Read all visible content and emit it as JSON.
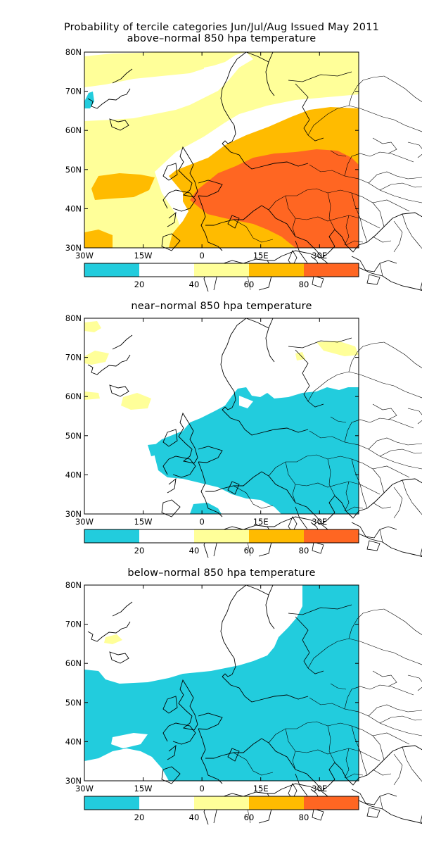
{
  "figure": {
    "title": "Probability of tercile categories Jun/Jul/Aug Issued May 2011",
    "panels": [
      {
        "id": "above",
        "subtitle": "above–normal 850 hpa temperature"
      },
      {
        "id": "near",
        "subtitle": "near–normal 850 hpa temperature"
      },
      {
        "id": "below",
        "subtitle": "below–normal 850 hpa temperature"
      }
    ],
    "lat_labels": [
      "80N",
      "70N",
      "60N",
      "50N",
      "40N",
      "30N"
    ],
    "lon_labels": [
      "30W",
      "15W",
      "0",
      "15E",
      "30E"
    ],
    "colorbar": {
      "labels": [
        "20",
        "40",
        "60",
        "80"
      ],
      "colors": [
        "#22ccdd",
        "#ffffff",
        "#ffff99",
        "#ffbb00",
        "#ff6622"
      ]
    }
  }
}
